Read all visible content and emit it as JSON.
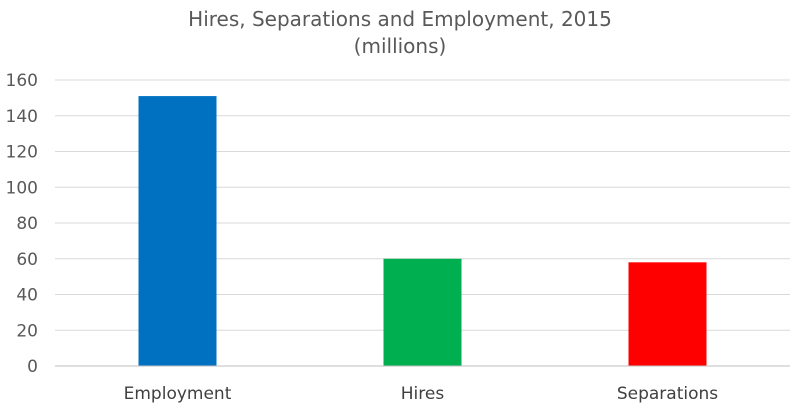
{
  "chart_data": {
    "type": "bar",
    "title": "Hires, Separations and Employment, 2015",
    "subtitle": "(millions)",
    "categories": [
      "Employment",
      "Hires",
      "Separations"
    ],
    "values": [
      151,
      60,
      58
    ],
    "colors": [
      "#0070C0",
      "#00B050",
      "#FF0000"
    ],
    "ylim": [
      0,
      160
    ],
    "yticks": [
      0,
      20,
      40,
      60,
      80,
      100,
      120,
      140,
      160
    ],
    "grid": true,
    "legend": "none"
  }
}
